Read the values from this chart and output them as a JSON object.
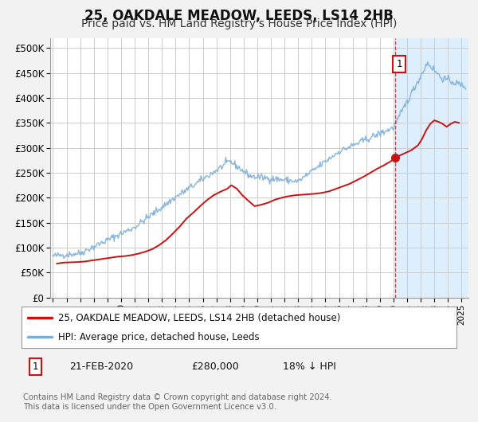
{
  "title": "25, OAKDALE MEADOW, LEEDS, LS14 2HB",
  "subtitle": "Price paid vs. HM Land Registry's House Price Index (HPI)",
  "title_fontsize": 12,
  "subtitle_fontsize": 10,
  "ylabel_ticks": [
    "£0",
    "£50K",
    "£100K",
    "£150K",
    "£200K",
    "£250K",
    "£300K",
    "£350K",
    "£400K",
    "£450K",
    "£500K"
  ],
  "ytick_values": [
    0,
    50000,
    100000,
    150000,
    200000,
    250000,
    300000,
    350000,
    400000,
    450000,
    500000
  ],
  "ylim": [
    0,
    520000
  ],
  "xlim_start": 1994.8,
  "xlim_end": 2025.5,
  "hpi_color": "#7aaddb",
  "price_color": "#cc1111",
  "annotation_date": "21-FEB-2020",
  "annotation_price": "£280,000",
  "annotation_hpi": "18% ↓ HPI",
  "annotation_year": 2020.13,
  "annotation_value": 280000,
  "vline_color": "#cc1111",
  "legend_label_price": "25, OAKDALE MEADOW, LEEDS, LS14 2HB (detached house)",
  "legend_label_hpi": "HPI: Average price, detached house, Leeds",
  "footnote": "Contains HM Land Registry data © Crown copyright and database right 2024.\nThis data is licensed under the Open Government Licence v3.0.",
  "fig_bg_color": "#f2f2f2",
  "plot_bg_color": "#ffffff",
  "highlight_bg": "#ddeeff",
  "grid_color": "#cccccc"
}
